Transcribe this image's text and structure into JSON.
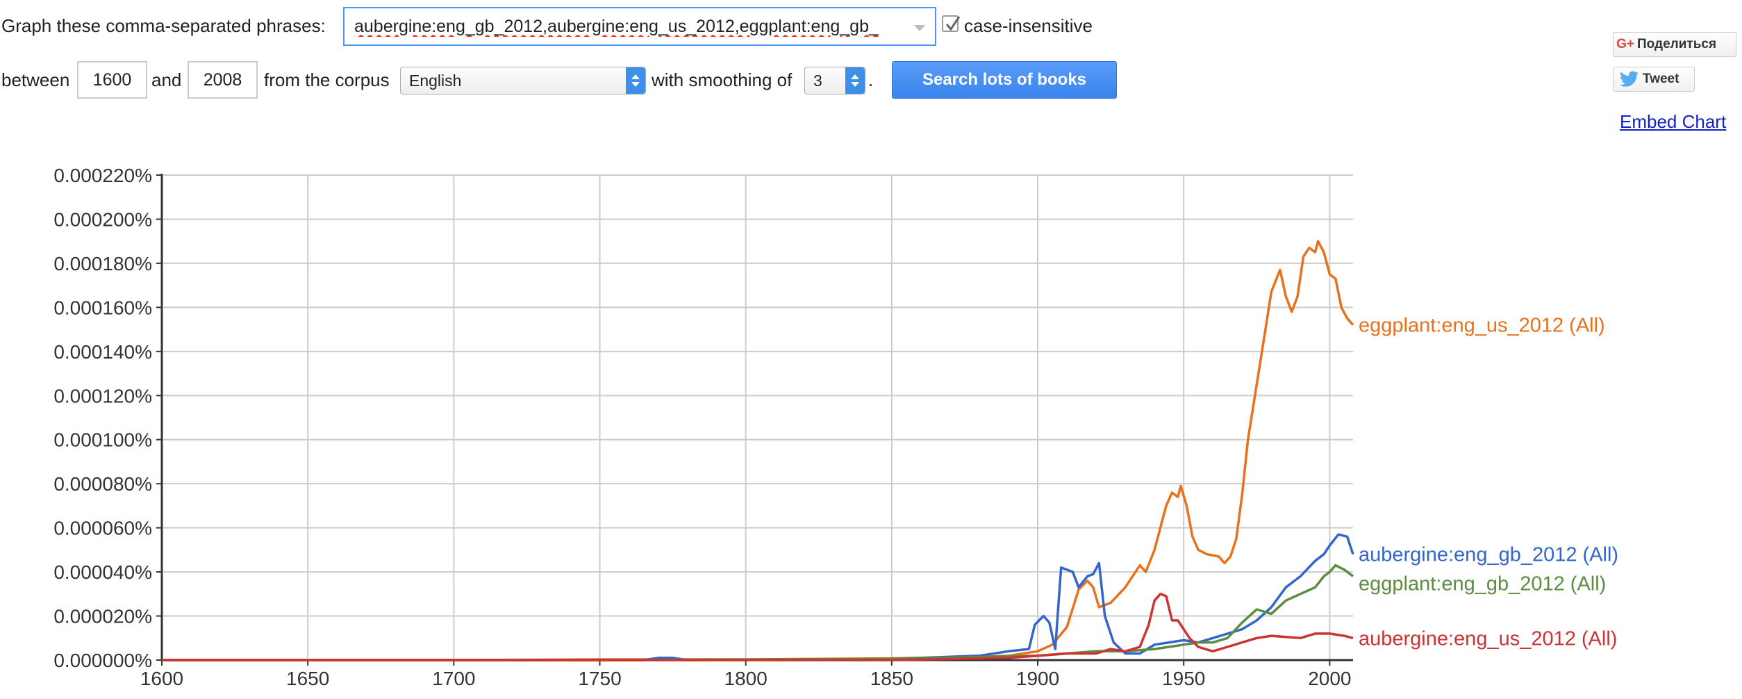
{
  "controls": {
    "graph_label": "Graph these comma-separated phrases:",
    "query_value": "aubergine:eng_gb_2012,aubergine:eng_us_2012,eggplant:eng_gb_",
    "case_label": "case-insensitive",
    "case_checked": true,
    "between_label": "between",
    "start_year": "1600",
    "and_label": "and",
    "end_year": "2008",
    "corpus_label": "from the corpus",
    "corpus_value": "English",
    "smoothing_label": "with smoothing of",
    "smoothing_value": "3",
    "smoothing_suffix": ".",
    "search_button": "Search lots of books"
  },
  "share": {
    "google_label": "Поделиться",
    "tweet_label": "Tweet",
    "embed_label": "Embed Chart"
  },
  "icons": {
    "google": "google-plus-icon",
    "twitter": "twitter-bird-icon",
    "check": "checkmark-icon"
  },
  "chart_data": {
    "type": "line",
    "title": "",
    "xlabel": "",
    "ylabel": "",
    "xlim": [
      1600,
      2008
    ],
    "ylim": [
      0,
      0.00022
    ],
    "x_ticks": [
      1600,
      1650,
      1700,
      1750,
      1800,
      1850,
      1900,
      1950,
      2000
    ],
    "x_tick_labels": [
      "1600",
      "1650",
      "1700",
      "1750",
      "1800",
      "1850",
      "1900",
      "1950",
      "2000"
    ],
    "y_ticks": [
      0,
      2e-05,
      4e-05,
      6e-05,
      8e-05,
      0.0001,
      0.00012,
      0.00014,
      0.00016,
      0.00018,
      0.0002,
      0.00022
    ],
    "y_tick_labels": [
      "0.000000%",
      "0.000020%",
      "0.000040%",
      "0.000060%",
      "0.000080%",
      "0.000100%",
      "0.000120%",
      "0.000140%",
      "0.000160%",
      "0.000180%",
      "0.000200%",
      "0.000220%"
    ],
    "grid": true,
    "legend": "end-of-line labels",
    "series": [
      {
        "name": "eggplant:eng_us_2012 (All)",
        "color": "#e8711c",
        "points": [
          [
            1600,
            0
          ],
          [
            1700,
            0
          ],
          [
            1750,
            3e-07
          ],
          [
            1800,
            3e-07
          ],
          [
            1850,
            8e-07
          ],
          [
            1880,
            1.5e-06
          ],
          [
            1890,
            2e-06
          ],
          [
            1900,
            4e-06
          ],
          [
            1905,
            7e-06
          ],
          [
            1910,
            1.5e-05
          ],
          [
            1914,
            3.2e-05
          ],
          [
            1917,
            3.6e-05
          ],
          [
            1919,
            3.3e-05
          ],
          [
            1921,
            2.4e-05
          ],
          [
            1925,
            2.6e-05
          ],
          [
            1930,
            3.3e-05
          ],
          [
            1935,
            4.3e-05
          ],
          [
            1937,
            4e-05
          ],
          [
            1940,
            5e-05
          ],
          [
            1942,
            6e-05
          ],
          [
            1944,
            7e-05
          ],
          [
            1946,
            7.6e-05
          ],
          [
            1948,
            7.4e-05
          ],
          [
            1949,
            7.9e-05
          ],
          [
            1951,
            7e-05
          ],
          [
            1953,
            5.6e-05
          ],
          [
            1955,
            5e-05
          ],
          [
            1958,
            4.8e-05
          ],
          [
            1962,
            4.7e-05
          ],
          [
            1964,
            4.4e-05
          ],
          [
            1966,
            4.7e-05
          ],
          [
            1968,
            5.5e-05
          ],
          [
            1970,
            7.5e-05
          ],
          [
            1972,
            0.0001
          ],
          [
            1975,
            0.000125
          ],
          [
            1978,
            0.00015
          ],
          [
            1980,
            0.000167
          ],
          [
            1983,
            0.000177
          ],
          [
            1985,
            0.000165
          ],
          [
            1987,
            0.000158
          ],
          [
            1989,
            0.000165
          ],
          [
            1991,
            0.000183
          ],
          [
            1993,
            0.000187
          ],
          [
            1995,
            0.000185
          ],
          [
            1996,
            0.00019
          ],
          [
            1998,
            0.000185
          ],
          [
            2000,
            0.000175
          ],
          [
            2002,
            0.000173
          ],
          [
            2004,
            0.00016
          ],
          [
            2006,
            0.000155
          ],
          [
            2008,
            0.000152
          ]
        ]
      },
      {
        "name": "aubergine:eng_gb_2012 (All)",
        "color": "#3366cc",
        "points": [
          [
            1600,
            0
          ],
          [
            1700,
            0
          ],
          [
            1765,
            0
          ],
          [
            1770,
            1e-06
          ],
          [
            1775,
            1e-06
          ],
          [
            1780,
            0
          ],
          [
            1850,
            5e-07
          ],
          [
            1880,
            2e-06
          ],
          [
            1890,
            4e-06
          ],
          [
            1897,
            5e-06
          ],
          [
            1899,
            1.6e-05
          ],
          [
            1902,
            2e-05
          ],
          [
            1904,
            1.7e-05
          ],
          [
            1906,
            5e-06
          ],
          [
            1908,
            4.2e-05
          ],
          [
            1912,
            4e-05
          ],
          [
            1914,
            3.3e-05
          ],
          [
            1917,
            3.8e-05
          ],
          [
            1919,
            3.9e-05
          ],
          [
            1921,
            4.4e-05
          ],
          [
            1923,
            2e-05
          ],
          [
            1926,
            8e-06
          ],
          [
            1930,
            3e-06
          ],
          [
            1935,
            3e-06
          ],
          [
            1940,
            7e-06
          ],
          [
            1945,
            8e-06
          ],
          [
            1950,
            9e-06
          ],
          [
            1955,
            8e-06
          ],
          [
            1960,
            1e-05
          ],
          [
            1965,
            1.2e-05
          ],
          [
            1970,
            1.4e-05
          ],
          [
            1975,
            1.8e-05
          ],
          [
            1980,
            2.4e-05
          ],
          [
            1985,
            3.3e-05
          ],
          [
            1990,
            3.8e-05
          ],
          [
            1995,
            4.5e-05
          ],
          [
            1998,
            4.8e-05
          ],
          [
            2000,
            5.2e-05
          ],
          [
            2003,
            5.7e-05
          ],
          [
            2006,
            5.6e-05
          ],
          [
            2008,
            4.8e-05
          ]
        ]
      },
      {
        "name": "eggplant:eng_gb_2012 (All)",
        "color": "#5b8c3f",
        "points": [
          [
            1600,
            0
          ],
          [
            1750,
            0
          ],
          [
            1850,
            5e-07
          ],
          [
            1900,
            2e-06
          ],
          [
            1910,
            3e-06
          ],
          [
            1920,
            4e-06
          ],
          [
            1930,
            4e-06
          ],
          [
            1940,
            5e-06
          ],
          [
            1945,
            6e-06
          ],
          [
            1950,
            7e-06
          ],
          [
            1955,
            8e-06
          ],
          [
            1960,
            8e-06
          ],
          [
            1965,
            1e-05
          ],
          [
            1970,
            1.7e-05
          ],
          [
            1975,
            2.3e-05
          ],
          [
            1980,
            2.1e-05
          ],
          [
            1985,
            2.7e-05
          ],
          [
            1990,
            3e-05
          ],
          [
            1995,
            3.3e-05
          ],
          [
            1998,
            3.8e-05
          ],
          [
            2000,
            4e-05
          ],
          [
            2002,
            4.3e-05
          ],
          [
            2005,
            4.1e-05
          ],
          [
            2008,
            3.8e-05
          ]
        ]
      },
      {
        "name": "aubergine:eng_us_2012 (All)",
        "color": "#cc3333",
        "points": [
          [
            1600,
            0
          ],
          [
            1850,
            0
          ],
          [
            1890,
            1e-06
          ],
          [
            1900,
            2e-06
          ],
          [
            1910,
            3e-06
          ],
          [
            1920,
            3e-06
          ],
          [
            1925,
            5e-06
          ],
          [
            1930,
            4e-06
          ],
          [
            1935,
            6e-06
          ],
          [
            1938,
            1.6e-05
          ],
          [
            1940,
            2.7e-05
          ],
          [
            1942,
            3e-05
          ],
          [
            1944,
            2.9e-05
          ],
          [
            1946,
            1.8e-05
          ],
          [
            1948,
            1.8e-05
          ],
          [
            1950,
            1.4e-05
          ],
          [
            1952,
            1e-05
          ],
          [
            1955,
            6e-06
          ],
          [
            1960,
            4e-06
          ],
          [
            1965,
            6e-06
          ],
          [
            1970,
            8e-06
          ],
          [
            1975,
            1e-05
          ],
          [
            1980,
            1.1e-05
          ],
          [
            1990,
            1e-05
          ],
          [
            1995,
            1.2e-05
          ],
          [
            2000,
            1.2e-05
          ],
          [
            2005,
            1.1e-05
          ],
          [
            2008,
            1e-05
          ]
        ]
      }
    ]
  }
}
